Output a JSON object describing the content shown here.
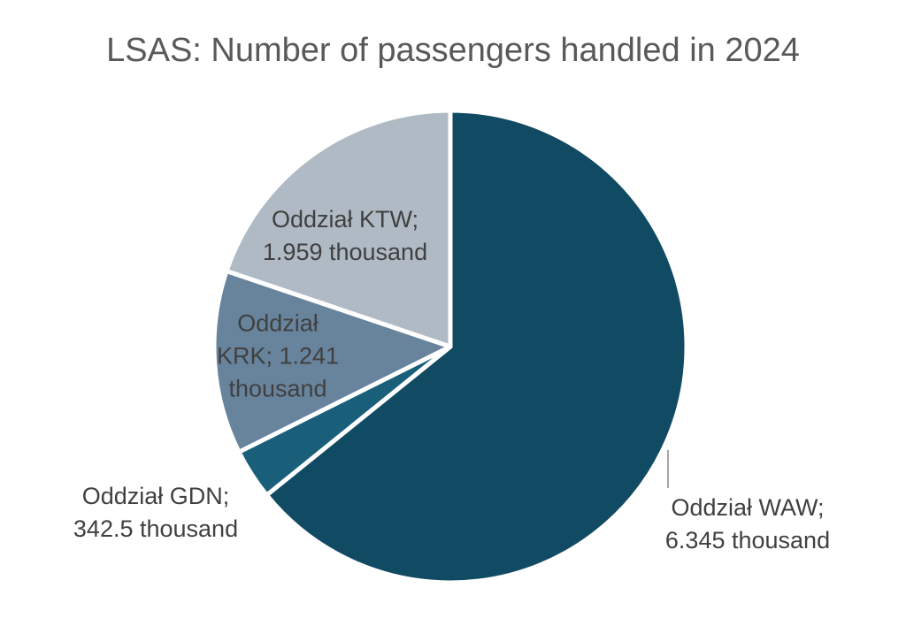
{
  "title": "LSAS: Number of passengers handled in 2024",
  "chart_data": {
    "type": "pie",
    "title": "LSAS: Number of passengers handled in 2024",
    "unit": "thousand passengers",
    "start_angle_deg": 0,
    "direction": "clockwise",
    "total": 9887.5,
    "slices": [
      {
        "id": "waw",
        "name": "Oddział WAW",
        "value": 6345,
        "display_value": "6.345 thousand",
        "color": "#114A63",
        "label_lines": [
          "Oddział WAW;",
          "6.345 thousand"
        ],
        "label_position": "outside-right"
      },
      {
        "id": "gdn",
        "name": "Oddział GDN",
        "value": 342.5,
        "display_value": "342.5 thousand",
        "color": "#1A5F7A",
        "label_lines": [
          "Oddział GDN;",
          "342.5 thousand"
        ],
        "label_position": "outside-left"
      },
      {
        "id": "krk",
        "name": "Oddział KRK",
        "value": 1241,
        "display_value": "1.241 thousand",
        "color": "#68849D",
        "label_lines": [
          "Oddział",
          "KRK; 1.241",
          "thousand"
        ],
        "label_position": "inside"
      },
      {
        "id": "ktw",
        "name": "Oddział KTW",
        "value": 1959,
        "display_value": "1.959 thousand",
        "color": "#AFBAC4",
        "label_lines": [
          "Oddział KTW;",
          "1.959 thousand"
        ],
        "label_position": "inside"
      }
    ],
    "colors": {
      "title_text": "#595959",
      "label_text": "#404040",
      "separator": "#FFFFFF",
      "leader_line": "#A6A6A6",
      "background": "#FFFFFF"
    },
    "legend": "none"
  }
}
